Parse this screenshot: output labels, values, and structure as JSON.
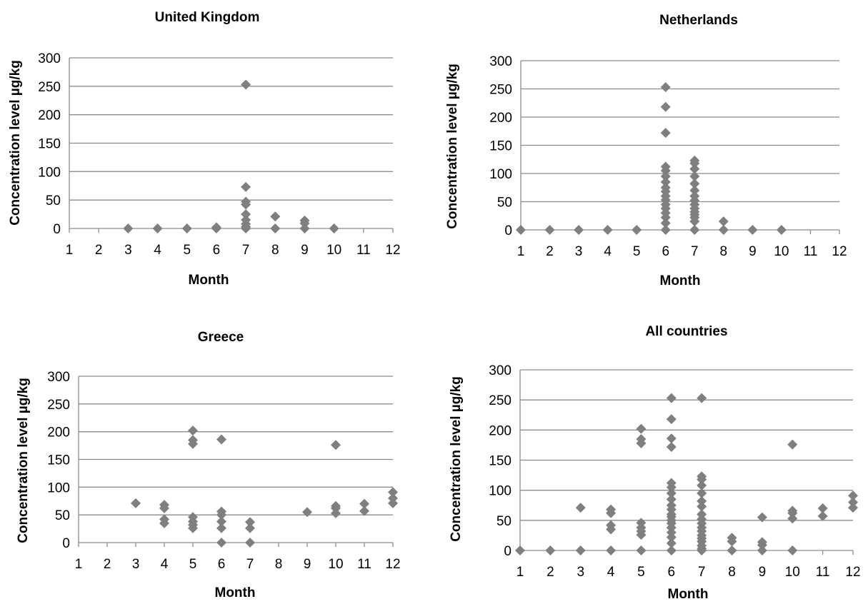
{
  "figure": {
    "marker_color": "#7f7f7f",
    "grid_color": "#8c8c8c",
    "axis_color": "#8c8c8c"
  },
  "chart_data": [
    {
      "type": "scatter",
      "title": "United Kingdom",
      "xlabel": "Month",
      "ylabel": "Concentration level µg/kg",
      "xlim": [
        1,
        12
      ],
      "ylim": [
        0,
        300
      ],
      "xticks": [
        1,
        2,
        3,
        4,
        5,
        6,
        7,
        8,
        9,
        10,
        11,
        12
      ],
      "yticks": [
        0,
        50,
        100,
        150,
        200,
        250,
        300
      ],
      "grid": true,
      "marker": "diamond",
      "points": [
        [
          3,
          0
        ],
        [
          4,
          0
        ],
        [
          5,
          0
        ],
        [
          6,
          0
        ],
        [
          6,
          2
        ],
        [
          7,
          253
        ],
        [
          7,
          73
        ],
        [
          7,
          47
        ],
        [
          7,
          42
        ],
        [
          7,
          25
        ],
        [
          7,
          15
        ],
        [
          7,
          8
        ],
        [
          7,
          3
        ],
        [
          7,
          0
        ],
        [
          8,
          21
        ],
        [
          8,
          0
        ],
        [
          9,
          14
        ],
        [
          9,
          9
        ],
        [
          9,
          0
        ],
        [
          10,
          0
        ]
      ]
    },
    {
      "type": "scatter",
      "title": "Netherlands",
      "xlabel": "Month",
      "ylabel": "Concentration level µg/kg",
      "xlim": [
        1,
        12
      ],
      "ylim": [
        0,
        300
      ],
      "xticks": [
        1,
        2,
        3,
        4,
        5,
        6,
        7,
        8,
        9,
        10,
        11,
        12
      ],
      "yticks": [
        0,
        50,
        100,
        150,
        200,
        250,
        300
      ],
      "grid": true,
      "marker": "diamond",
      "points": [
        [
          1,
          0
        ],
        [
          2,
          0
        ],
        [
          3,
          0
        ],
        [
          4,
          0
        ],
        [
          5,
          0
        ],
        [
          6,
          253
        ],
        [
          6,
          218
        ],
        [
          6,
          172
        ],
        [
          6,
          112
        ],
        [
          6,
          105
        ],
        [
          6,
          95
        ],
        [
          6,
          85
        ],
        [
          6,
          75
        ],
        [
          6,
          68
        ],
        [
          6,
          60
        ],
        [
          6,
          53
        ],
        [
          6,
          45
        ],
        [
          6,
          38
        ],
        [
          6,
          30
        ],
        [
          6,
          22
        ],
        [
          6,
          12
        ],
        [
          6,
          0
        ],
        [
          7,
          123
        ],
        [
          7,
          118
        ],
        [
          7,
          108
        ],
        [
          7,
          95
        ],
        [
          7,
          82
        ],
        [
          7,
          70
        ],
        [
          7,
          60
        ],
        [
          7,
          52
        ],
        [
          7,
          45
        ],
        [
          7,
          38
        ],
        [
          7,
          32
        ],
        [
          7,
          27
        ],
        [
          7,
          22
        ],
        [
          7,
          15
        ],
        [
          7,
          0
        ],
        [
          8,
          15
        ],
        [
          8,
          0
        ],
        [
          9,
          0
        ],
        [
          10,
          0
        ]
      ]
    },
    {
      "type": "scatter",
      "title": "Greece",
      "xlabel": "Month",
      "ylabel": "Concentration level µg/kg",
      "xlim": [
        1,
        12
      ],
      "ylim": [
        0,
        300
      ],
      "xticks": [
        1,
        2,
        3,
        4,
        5,
        6,
        7,
        8,
        9,
        10,
        11,
        12
      ],
      "yticks": [
        0,
        50,
        100,
        150,
        200,
        250,
        300
      ],
      "grid": true,
      "marker": "diamond",
      "points": [
        [
          3,
          71
        ],
        [
          4,
          68
        ],
        [
          4,
          62
        ],
        [
          4,
          42
        ],
        [
          4,
          35
        ],
        [
          5,
          202
        ],
        [
          5,
          185
        ],
        [
          5,
          178
        ],
        [
          5,
          46
        ],
        [
          5,
          38
        ],
        [
          5,
          32
        ],
        [
          5,
          26
        ],
        [
          6,
          186
        ],
        [
          6,
          56
        ],
        [
          6,
          50
        ],
        [
          6,
          38
        ],
        [
          6,
          26
        ],
        [
          6,
          0
        ],
        [
          7,
          37
        ],
        [
          7,
          26
        ],
        [
          7,
          0
        ],
        [
          9,
          55
        ],
        [
          10,
          176
        ],
        [
          10,
          66
        ],
        [
          10,
          62
        ],
        [
          10,
          53
        ],
        [
          11,
          70
        ],
        [
          11,
          57
        ],
        [
          12,
          91
        ],
        [
          12,
          80
        ],
        [
          12,
          71
        ]
      ]
    },
    {
      "type": "scatter",
      "title": "All countries",
      "xlabel": "Month",
      "ylabel": "Concentration level µg/kg",
      "xlim": [
        1,
        12
      ],
      "ylim": [
        0,
        300
      ],
      "xticks": [
        1,
        2,
        3,
        4,
        5,
        6,
        7,
        8,
        9,
        10,
        11,
        12
      ],
      "yticks": [
        0,
        50,
        100,
        150,
        200,
        250,
        300
      ],
      "grid": true,
      "marker": "diamond",
      "points": [
        [
          1,
          0
        ],
        [
          2,
          0
        ],
        [
          3,
          71
        ],
        [
          3,
          0
        ],
        [
          4,
          68
        ],
        [
          4,
          62
        ],
        [
          4,
          42
        ],
        [
          4,
          35
        ],
        [
          4,
          0
        ],
        [
          5,
          202
        ],
        [
          5,
          185
        ],
        [
          5,
          178
        ],
        [
          5,
          46
        ],
        [
          5,
          38
        ],
        [
          5,
          32
        ],
        [
          5,
          26
        ],
        [
          5,
          0
        ],
        [
          6,
          253
        ],
        [
          6,
          218
        ],
        [
          6,
          186
        ],
        [
          6,
          172
        ],
        [
          6,
          112
        ],
        [
          6,
          105
        ],
        [
          6,
          95
        ],
        [
          6,
          85
        ],
        [
          6,
          75
        ],
        [
          6,
          68
        ],
        [
          6,
          60
        ],
        [
          6,
          56
        ],
        [
          6,
          50
        ],
        [
          6,
          45
        ],
        [
          6,
          38
        ],
        [
          6,
          30
        ],
        [
          6,
          22
        ],
        [
          6,
          12
        ],
        [
          6,
          0
        ],
        [
          7,
          253
        ],
        [
          7,
          123
        ],
        [
          7,
          118
        ],
        [
          7,
          108
        ],
        [
          7,
          95
        ],
        [
          7,
          82
        ],
        [
          7,
          73
        ],
        [
          7,
          60
        ],
        [
          7,
          52
        ],
        [
          7,
          45
        ],
        [
          7,
          38
        ],
        [
          7,
          32
        ],
        [
          7,
          25
        ],
        [
          7,
          20
        ],
        [
          7,
          15
        ],
        [
          7,
          8
        ],
        [
          7,
          3
        ],
        [
          7,
          0
        ],
        [
          8,
          21
        ],
        [
          8,
          15
        ],
        [
          8,
          0
        ],
        [
          9,
          55
        ],
        [
          9,
          14
        ],
        [
          9,
          9
        ],
        [
          9,
          0
        ],
        [
          10,
          176
        ],
        [
          10,
          66
        ],
        [
          10,
          62
        ],
        [
          10,
          53
        ],
        [
          10,
          0
        ],
        [
          11,
          70
        ],
        [
          11,
          57
        ],
        [
          12,
          91
        ],
        [
          12,
          80
        ],
        [
          12,
          71
        ]
      ]
    }
  ]
}
